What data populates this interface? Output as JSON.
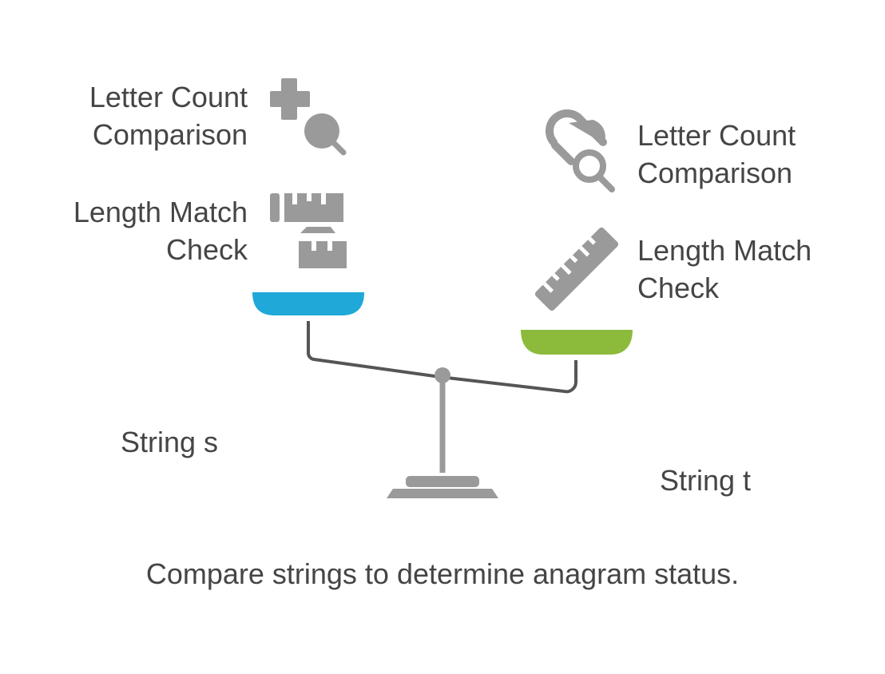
{
  "left": {
    "letter_count_lines": [
      "Letter Count",
      "Comparison"
    ],
    "length_match_lines": [
      "Length Match",
      "Check"
    ],
    "string_label": "String s",
    "pan_color": "#1fa8d8"
  },
  "right": {
    "letter_count_lines": [
      "Letter Count",
      "Comparison"
    ],
    "length_match_lines": [
      "Length Match",
      "Check"
    ],
    "string_label": "String t",
    "pan_color": "#8cbb3c"
  },
  "caption": "Compare strings to determine anagram status.",
  "icons": {
    "left_letter_count": "plus-magnifier-icon",
    "left_length_match": "broken-ruler-icon",
    "right_letter_count": "pill-magnifier-icon",
    "right_length_match": "ruler-icon"
  },
  "colors": {
    "icon_gray": "#9a9a9a",
    "beam": "#555555",
    "stand": "#9a9a9a"
  }
}
